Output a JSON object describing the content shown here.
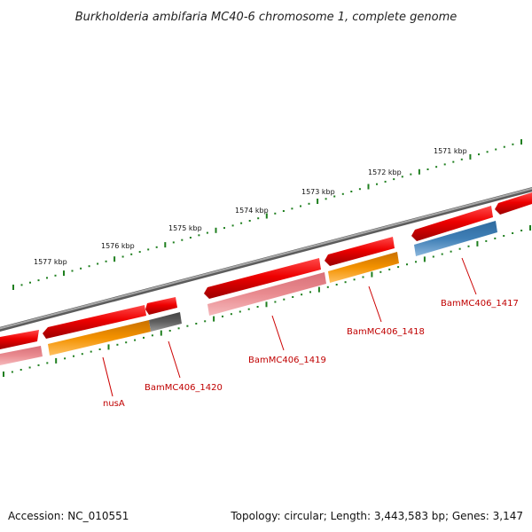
{
  "title": "Burkholderia ambifaria MC40-6 chromosome 1, complete genome",
  "footer": {
    "accession": "Accession: NC_010551",
    "summary": "Topology: circular; Length: 3,443,583 bp; Genes: 3,147"
  },
  "ruler_labels": [
    "1577 kbp",
    "1576 kbp",
    "1575 kbp",
    "1574 kbp",
    "1573 kbp",
    "1572 kbp",
    "1571 kbp"
  ],
  "gene_labels": [
    "nusA",
    "BamMC406_1420",
    "BamMC406_1419",
    "BamMC406_1418",
    "BamMC406_1417"
  ],
  "colors": {
    "backbone": "#7f7f7f",
    "cds": "#ee0000",
    "gene_outer_pink": "#e98b90",
    "gene_outer_orange": "#f39200",
    "gene_outer_gray": "#5f5f5f",
    "gene_outer_blue": "#3f7fb6",
    "ticks": "#1f7f1f",
    "label": "#c00000"
  }
}
